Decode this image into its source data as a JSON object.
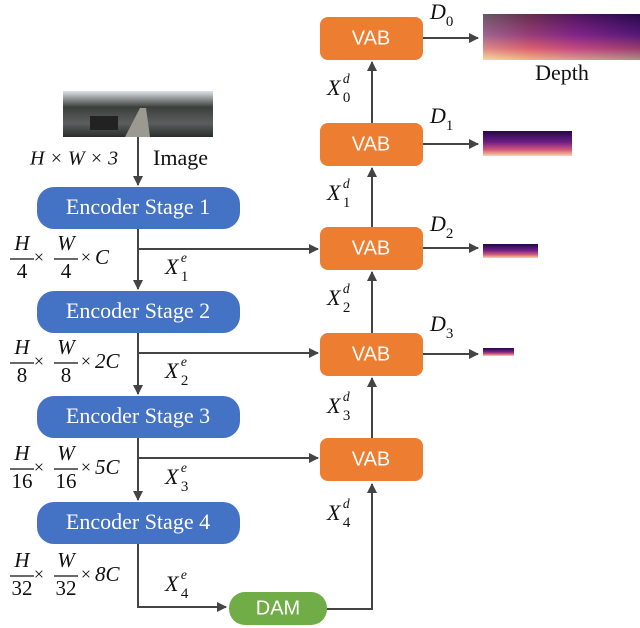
{
  "input": {
    "label": "Image",
    "shape": "H × W × 3"
  },
  "times": "×",
  "encoder": [
    {
      "label": "Encoder Stage 1",
      "shape": {
        "h": "H",
        "hd": "4",
        "w": "W",
        "wd": "4",
        "c": "C"
      },
      "feature": {
        "base": "X",
        "sub": "1",
        "sup": "e"
      }
    },
    {
      "label": "Encoder Stage 2",
      "shape": {
        "h": "H",
        "hd": "8",
        "w": "W",
        "wd": "8",
        "c": "2C"
      },
      "feature": {
        "base": "X",
        "sub": "2",
        "sup": "e"
      }
    },
    {
      "label": "Encoder Stage 3",
      "shape": {
        "h": "H",
        "hd": "16",
        "w": "W",
        "wd": "16",
        "c": "5C"
      },
      "feature": {
        "base": "X",
        "sub": "3",
        "sup": "e"
      }
    },
    {
      "label": "Encoder Stage 4",
      "shape": {
        "h": "H",
        "hd": "32",
        "w": "W",
        "wd": "32",
        "c": "8C"
      },
      "feature": {
        "base": "X",
        "sub": "4",
        "sup": "e"
      }
    }
  ],
  "dam": "DAM",
  "decoder": [
    "VAB",
    "VAB",
    "VAB",
    "VAB",
    "VAB"
  ],
  "decoder_features": [
    {
      "base": "X",
      "sub": "0",
      "sup": "d"
    },
    {
      "base": "X",
      "sub": "1",
      "sup": "d"
    },
    {
      "base": "X",
      "sub": "2",
      "sup": "d"
    },
    {
      "base": "X",
      "sub": "3",
      "sup": "d"
    },
    {
      "base": "X",
      "sub": "4",
      "sup": "d"
    }
  ],
  "outputs": [
    {
      "base": "D",
      "sub": "0"
    },
    {
      "base": "D",
      "sub": "1"
    },
    {
      "base": "D",
      "sub": "2"
    },
    {
      "base": "D",
      "sub": "3"
    }
  ],
  "depth_label": "Depth"
}
